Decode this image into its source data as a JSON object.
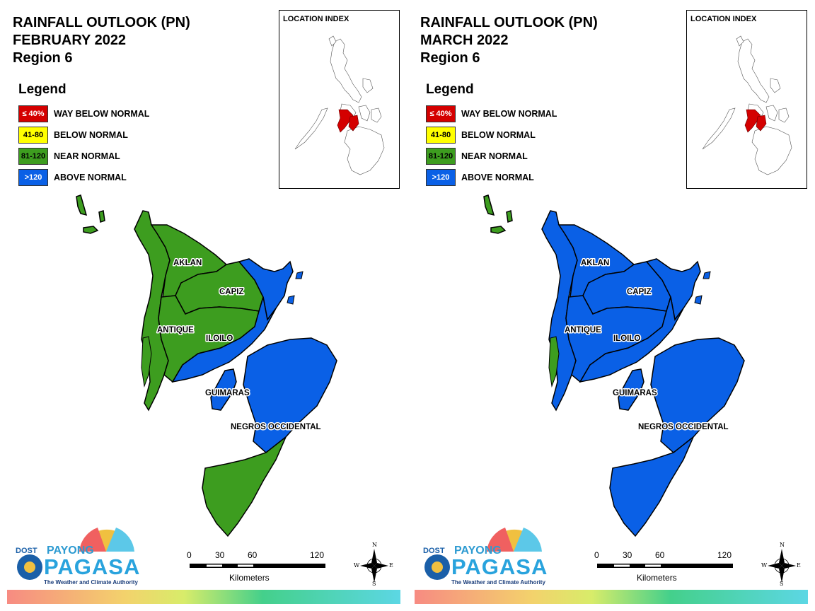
{
  "colors": {
    "way_below_normal": "#d40000",
    "below_normal": "#ffff00",
    "near_normal": "#3d9d1f",
    "above_normal": "#0a60e6"
  },
  "legend": {
    "heading": "Legend",
    "items": [
      {
        "swatch": "≤ 40%",
        "label": "WAY BELOW NORMAL",
        "color": "#d40000",
        "text_color": "#ffffff"
      },
      {
        "swatch": "41-80",
        "label": "BELOW NORMAL",
        "color": "#ffff00",
        "text_color": "#000000"
      },
      {
        "swatch": "81-120",
        "label": "NEAR NORMAL",
        "color": "#3d9d1f",
        "text_color": "#000000"
      },
      {
        "swatch": ">120",
        "label": "ABOVE NORMAL",
        "color": "#0a60e6",
        "text_color": "#ffffff"
      }
    ]
  },
  "location_index_title": "LOCATION INDEX",
  "province_labels": [
    "AKLAN",
    "CAPIZ",
    "ANTIQUE",
    "ILOILO",
    "GUIMARAS",
    "NEGROS OCCIDENTAL"
  ],
  "scalebar": {
    "ticks": [
      "0",
      "30",
      "60",
      "120"
    ],
    "unit": "Kilometers"
  },
  "compass": {
    "n": "N",
    "e": "E",
    "s": "S",
    "w": "W"
  },
  "logo": {
    "dost": "DOST",
    "payong": "PAYONG",
    "pagasa": "PAGASA",
    "tagline": "The Weather and Climate Authority"
  },
  "maps": [
    {
      "title_line1": "RAINFALL OUTLOOK (PN)",
      "title_line2": "FEBRUARY 2022",
      "title_line3": "Region 6",
      "fill": {
        "aklan": "near_normal",
        "antique": "near_normal",
        "capiz_west": "near_normal",
        "capiz_east": "above_normal",
        "iloilo_west": "near_normal",
        "iloilo_east": "above_normal",
        "guimaras": "above_normal",
        "negros_north": "above_normal",
        "negros_south": "near_normal",
        "islands_north": "near_normal",
        "antique_coast": "near_normal"
      }
    },
    {
      "title_line1": "RAINFALL OUTLOOK (PN)",
      "title_line2": "MARCH 2022",
      "title_line3": "Region 6",
      "fill": {
        "aklan": "above_normal",
        "antique": "above_normal",
        "capiz_west": "above_normal",
        "capiz_east": "above_normal",
        "iloilo_west": "above_normal",
        "iloilo_east": "above_normal",
        "guimaras": "above_normal",
        "negros_north": "above_normal",
        "negros_south": "above_normal",
        "islands_north": "near_normal",
        "antique_coast": "near_normal"
      }
    }
  ]
}
